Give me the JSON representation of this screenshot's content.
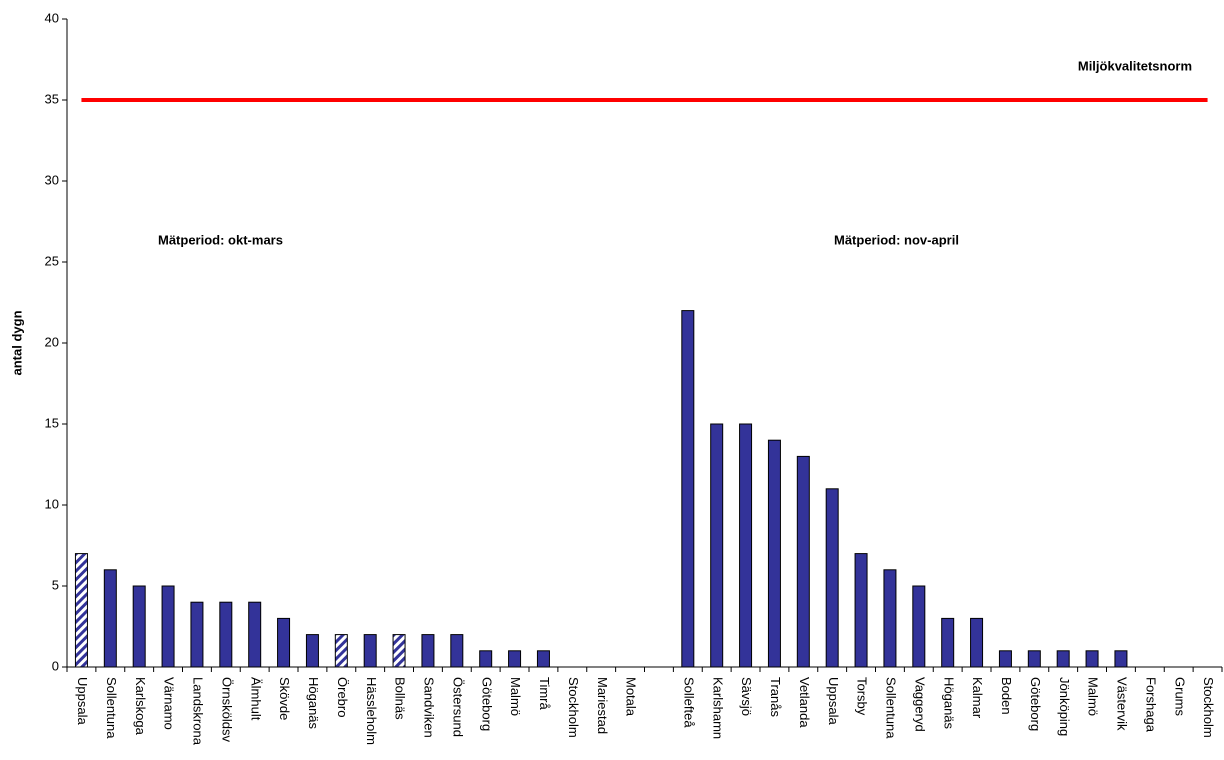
{
  "chart_data": {
    "type": "bar",
    "y_label": "antal dygn",
    "categories": [
      "Uppsala",
      "Sollentuna",
      "Karlskoga",
      "Värnamo",
      "Landskrona",
      "Örnsköldsv",
      "Älmhult",
      "Skövde",
      "Höganäs",
      "Örebro",
      "Hässleholm",
      "Bollnäs",
      "Sandviken",
      "Östersund",
      "Göteborg",
      "Malmö",
      "Timrå",
      "Stockholm",
      "Mariestad",
      "Motala",
      null,
      "Sollefteå",
      "Karlshamn",
      "Sävsjö",
      "Tranås",
      "Vetlanda",
      "Uppsala",
      "Torsby",
      "Sollentuna",
      "Vaggeryd",
      "Höganäs",
      "Kalmar",
      "Boden",
      "Göteborg",
      "Jönköping",
      "Malmö",
      "Västervik",
      "Forshaga",
      "Grums",
      "Stockholm"
    ],
    "values": [
      7,
      6,
      5,
      5,
      4,
      4,
      4,
      3,
      2,
      2,
      2,
      2,
      2,
      2,
      1,
      1,
      1,
      0,
      0,
      0,
      null,
      22,
      15,
      15,
      14,
      13,
      11,
      7,
      6,
      5,
      3,
      3,
      1,
      1,
      1,
      1,
      1,
      0,
      0,
      0
    ],
    "color": "#333399",
    "hatched_indices": [
      0,
      9,
      11
    ],
    "ylim": [
      0,
      40
    ],
    "yticks": [
      0,
      5,
      10,
      15,
      20,
      25,
      30,
      35,
      40
    ],
    "grid": false,
    "reference_line": {
      "value": 35,
      "label": "Miljökvalitetsnorm",
      "color": "#ff0000"
    },
    "annotations": [
      "Mätperiod: okt-mars",
      "Mätperiod: nov-april"
    ]
  }
}
